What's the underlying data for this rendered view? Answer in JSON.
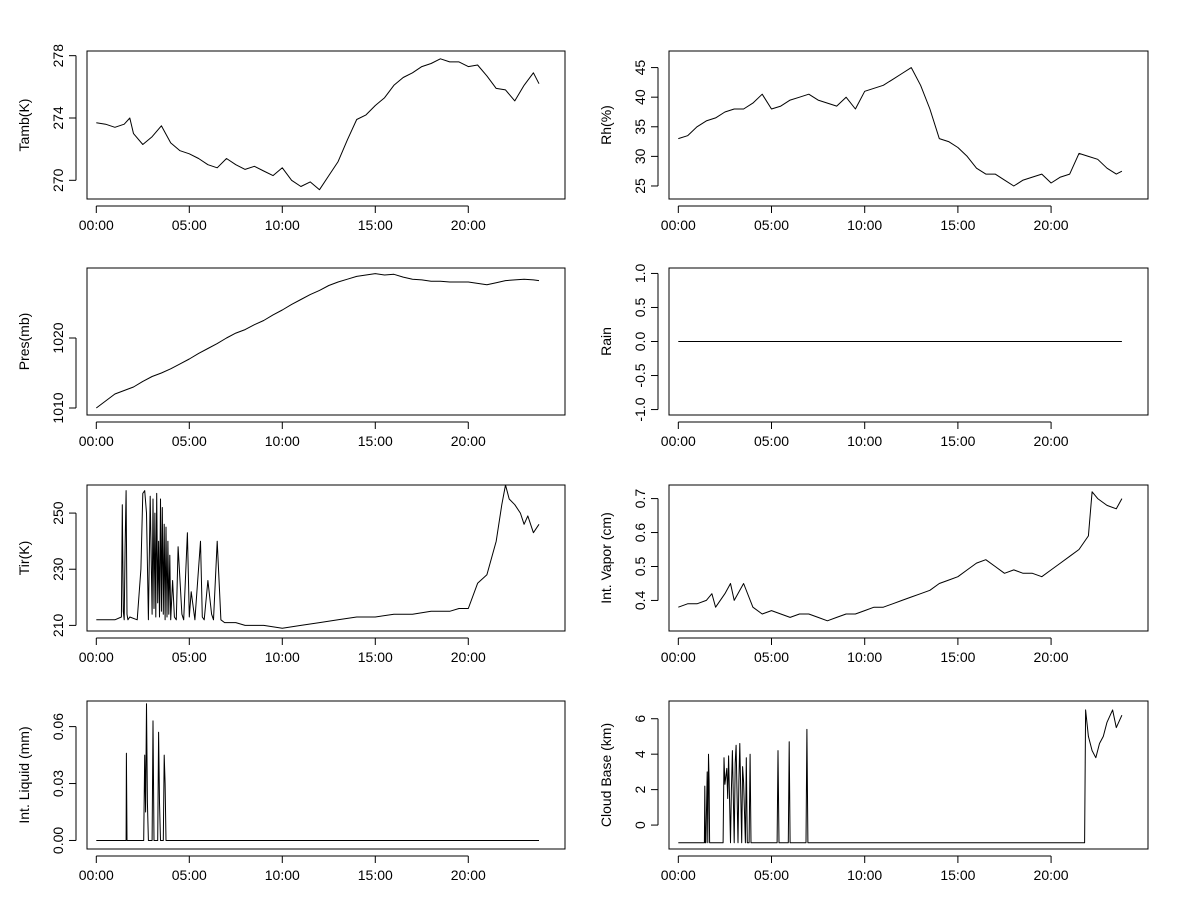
{
  "chart_data": [
    {
      "type": "line",
      "ylabel": "Tamb(K)",
      "xticks": [
        "00:00",
        "05:00",
        "10:00",
        "15:00",
        "20:00"
      ],
      "xlim": [
        -0.5,
        25.2
      ],
      "ylim": [
        268.8,
        278.3
      ],
      "yticks": [
        "270",
        "274",
        "278"
      ],
      "x": [
        0,
        0.5,
        1,
        1.5,
        1.8,
        2,
        2.5,
        3,
        3.5,
        4,
        4.5,
        5,
        5.5,
        6,
        6.5,
        7,
        7.5,
        8,
        8.5,
        9,
        9.5,
        10,
        10.5,
        11,
        11.5,
        12,
        12.5,
        13,
        13.5,
        14,
        14.5,
        15,
        15.5,
        16,
        16.5,
        17,
        17.5,
        18,
        18.5,
        19,
        19.5,
        20,
        20.5,
        21,
        21.5,
        22,
        22.5,
        23,
        23.5,
        23.8
      ],
      "y": [
        273.7,
        273.6,
        273.4,
        273.6,
        274.0,
        273.0,
        272.3,
        272.8,
        273.5,
        272.4,
        271.9,
        271.7,
        271.4,
        271.0,
        270.8,
        271.4,
        271.0,
        270.7,
        270.9,
        270.6,
        270.3,
        270.8,
        270.0,
        269.6,
        269.9,
        269.4,
        270.3,
        271.2,
        272.6,
        273.9,
        274.2,
        274.8,
        275.3,
        276.1,
        276.6,
        276.9,
        277.3,
        277.5,
        277.8,
        277.6,
        277.6,
        277.3,
        277.4,
        276.7,
        275.9,
        275.8,
        275.1,
        276.1,
        276.9,
        276.2
      ]
    },
    {
      "type": "line",
      "ylabel": "Rh(%)",
      "xticks": [
        "00:00",
        "05:00",
        "10:00",
        "15:00",
        "20:00"
      ],
      "xlim": [
        -0.5,
        25.2
      ],
      "ylim": [
        22.8,
        47.8
      ],
      "yticks": [
        "25",
        "30",
        "35",
        "40",
        "45"
      ],
      "x": [
        0,
        0.5,
        1,
        1.5,
        2,
        2.5,
        3,
        3.5,
        4,
        4.5,
        5,
        5.5,
        6,
        6.5,
        7,
        7.5,
        8,
        8.5,
        9,
        9.5,
        10,
        10.5,
        11,
        11.5,
        12,
        12.5,
        13,
        13.5,
        14,
        14.5,
        15,
        15.5,
        16,
        16.5,
        17,
        17.5,
        18,
        18.5,
        19,
        19.5,
        20,
        20.5,
        21,
        21.5,
        22,
        22.5,
        23,
        23.5,
        23.8
      ],
      "y": [
        33,
        33.5,
        35,
        36,
        36.5,
        37.5,
        38,
        38,
        39,
        40.5,
        38,
        38.5,
        39.5,
        40,
        40.5,
        39.5,
        39,
        38.5,
        40,
        38,
        41,
        41.5,
        42,
        43,
        44,
        45,
        42,
        38,
        33,
        32.5,
        31.5,
        30,
        28,
        27,
        27,
        26,
        25,
        26,
        26.5,
        27,
        25.5,
        26.5,
        27,
        30.5,
        30,
        29.5,
        28,
        27,
        27.5
      ]
    },
    {
      "type": "line",
      "ylabel": "Pres(mb)",
      "xticks": [
        "00:00",
        "05:00",
        "10:00",
        "15:00",
        "20:00"
      ],
      "xlim": [
        -0.5,
        25.2
      ],
      "ylim": [
        1009.0,
        1030.0
      ],
      "yticks": [
        "1010",
        "1020"
      ],
      "x": [
        0,
        0.5,
        1,
        1.5,
        2,
        2.5,
        3,
        3.5,
        4,
        4.5,
        5,
        5.5,
        6,
        6.5,
        7,
        7.5,
        8,
        8.5,
        9,
        9.5,
        10,
        10.5,
        11,
        11.5,
        12,
        12.5,
        13,
        13.5,
        14,
        14.5,
        15,
        15.5,
        16,
        16.5,
        17,
        17.5,
        18,
        18.5,
        19,
        19.5,
        20,
        20.5,
        21,
        21.5,
        22,
        22.5,
        23,
        23.5,
        23.8
      ],
      "y": [
        1010,
        1011,
        1012,
        1012.5,
        1013,
        1013.8,
        1014.5,
        1015,
        1015.6,
        1016.3,
        1017,
        1017.8,
        1018.5,
        1019.2,
        1020,
        1020.7,
        1021.2,
        1021.9,
        1022.5,
        1023.3,
        1024,
        1024.8,
        1025.5,
        1026.2,
        1026.8,
        1027.5,
        1028,
        1028.4,
        1028.8,
        1029,
        1029.2,
        1029,
        1029.1,
        1028.7,
        1028.4,
        1028.3,
        1028.1,
        1028.1,
        1028.0,
        1028.0,
        1028.0,
        1027.8,
        1027.6,
        1027.9,
        1028.2,
        1028.3,
        1028.4,
        1028.3,
        1028.2
      ]
    },
    {
      "type": "line",
      "ylabel": "Rain",
      "xticks": [
        "00:00",
        "05:00",
        "10:00",
        "15:00",
        "20:00"
      ],
      "xlim": [
        -0.5,
        25.2
      ],
      "ylim": [
        -1.08,
        1.08
      ],
      "yticks": [
        "-1.0",
        "-0.5",
        "0.0",
        "0.5",
        "1.0"
      ],
      "x": [
        0,
        23.8
      ],
      "y": [
        0,
        0
      ]
    },
    {
      "type": "line",
      "ylabel": "Tir(K)",
      "xticks": [
        "00:00",
        "05:00",
        "10:00",
        "15:00",
        "20:00"
      ],
      "xlim": [
        -0.5,
        25.2
      ],
      "ylim": [
        208.0,
        260.0
      ],
      "yticks": [
        "210",
        "230",
        "250"
      ],
      "x": [
        0,
        1,
        1.35,
        1.4,
        1.45,
        1.5,
        1.55,
        1.6,
        1.65,
        1.7,
        1.8,
        2.2,
        2.4,
        2.5,
        2.6,
        2.7,
        2.8,
        2.9,
        3.0,
        3.05,
        3.1,
        3.15,
        3.2,
        3.25,
        3.3,
        3.35,
        3.4,
        3.45,
        3.5,
        3.55,
        3.6,
        3.65,
        3.7,
        3.75,
        3.8,
        3.85,
        3.9,
        3.95,
        4.0,
        4.1,
        4.2,
        4.3,
        4.4,
        4.6,
        4.7,
        4.9,
        5.0,
        5.1,
        5.3,
        5.6,
        5.7,
        5.8,
        6.0,
        6.2,
        6.3,
        6.5,
        6.7,
        6.9,
        7.0,
        7.1,
        7.5,
        8,
        9,
        10,
        11,
        12,
        13,
        14,
        15,
        16,
        17,
        18,
        18.5,
        19,
        19.5,
        20,
        20.5,
        21,
        21.5,
        21.8,
        22.0,
        22.2,
        22.5,
        22.8,
        23,
        23.2,
        23.5,
        23.8
      ],
      "y": [
        212,
        212,
        213,
        253,
        215,
        212,
        238,
        258,
        214,
        212,
        213,
        212,
        230,
        257,
        258,
        250,
        212,
        256,
        214,
        255,
        216,
        250,
        213,
        257,
        218,
        240,
        213,
        255,
        215,
        252,
        214,
        246,
        212,
        245,
        213,
        240,
        214,
        235,
        212,
        226,
        213,
        212,
        238,
        214,
        212,
        243,
        213,
        222,
        212,
        240,
        213,
        212,
        226,
        214,
        212,
        240,
        212,
        211,
        211,
        211,
        211,
        210,
        210,
        209,
        210,
        211,
        212,
        213,
        213,
        214,
        214,
        215,
        215,
        215,
        216,
        216,
        225,
        228,
        240,
        253,
        260,
        255,
        253,
        250,
        246,
        249,
        243,
        246
      ]
    },
    {
      "type": "line",
      "ylabel": "Int. Vapor (cm)",
      "xticks": [
        "00:00",
        "05:00",
        "10:00",
        "15:00",
        "20:00"
      ],
      "xlim": [
        -0.5,
        25.2
      ],
      "ylim": [
        0.31,
        0.74
      ],
      "yticks": [
        "0.4",
        "0.5",
        "0.6",
        "0.7"
      ],
      "x": [
        0,
        0.5,
        1,
        1.5,
        1.8,
        2,
        2.5,
        2.8,
        3,
        3.5,
        4,
        4.5,
        5,
        5.5,
        6,
        6.5,
        7,
        7.5,
        8,
        8.5,
        9,
        9.5,
        10,
        10.5,
        11,
        11.5,
        12,
        12.5,
        13,
        13.5,
        14,
        14.5,
        15,
        15.5,
        16,
        16.5,
        17,
        17.5,
        18,
        18.5,
        19,
        19.5,
        20,
        20.5,
        21,
        21.5,
        22,
        22.2,
        22.5,
        23,
        23.5,
        23.8
      ],
      "y": [
        0.38,
        0.39,
        0.39,
        0.4,
        0.42,
        0.38,
        0.42,
        0.45,
        0.4,
        0.45,
        0.38,
        0.36,
        0.37,
        0.36,
        0.35,
        0.36,
        0.36,
        0.35,
        0.34,
        0.35,
        0.36,
        0.36,
        0.37,
        0.38,
        0.38,
        0.39,
        0.4,
        0.41,
        0.42,
        0.43,
        0.45,
        0.46,
        0.47,
        0.49,
        0.51,
        0.52,
        0.5,
        0.48,
        0.49,
        0.48,
        0.48,
        0.47,
        0.49,
        0.51,
        0.53,
        0.55,
        0.59,
        0.72,
        0.7,
        0.68,
        0.67,
        0.7
      ]
    },
    {
      "type": "line",
      "ylabel": "Int. Liquid (mm)",
      "xticks": [
        "00:00",
        "05:00",
        "10:00",
        "15:00",
        "20:00"
      ],
      "xlim": [
        -0.5,
        25.2
      ],
      "ylim": [
        -0.0045,
        0.0735
      ],
      "yticks": [
        "0.00",
        "0.03",
        "0.06"
      ],
      "x": [
        0,
        1.6,
        1.62,
        1.65,
        1.68,
        2.55,
        2.6,
        2.65,
        2.7,
        2.75,
        2.8,
        3.0,
        3.05,
        3.1,
        3.3,
        3.35,
        3.4,
        3.45,
        3.6,
        3.65,
        3.7,
        3.75,
        3.8,
        3.9,
        23.8
      ],
      "y": [
        0,
        0,
        0.046,
        0,
        0,
        0,
        0.045,
        0.015,
        0.072,
        0.02,
        0,
        0,
        0.063,
        0,
        0,
        0.057,
        0.02,
        0,
        0,
        0.045,
        0.03,
        0,
        0,
        0,
        0
      ]
    },
    {
      "type": "line",
      "ylabel": "Cloud Base (km)",
      "xticks": [
        "00:00",
        "05:00",
        "10:00",
        "15:00",
        "20:00"
      ],
      "xlim": [
        -0.5,
        25.2
      ],
      "ylim": [
        -1.35,
        7.0
      ],
      "yticks": [
        "0",
        "2",
        "4",
        "6"
      ],
      "x": [
        0,
        1.4,
        1.42,
        1.45,
        1.48,
        1.55,
        1.58,
        1.62,
        1.65,
        1.68,
        2.4,
        2.45,
        2.5,
        2.6,
        2.65,
        2.7,
        2.8,
        2.85,
        2.9,
        3.0,
        3.05,
        3.1,
        3.2,
        3.25,
        3.3,
        3.4,
        3.45,
        3.5,
        3.6,
        3.65,
        3.7,
        3.8,
        3.85,
        3.9,
        4.2,
        4.25,
        4.3,
        5.3,
        5.35,
        5.4,
        5.9,
        5.95,
        6.0,
        6.85,
        6.9,
        6.95,
        21.8,
        21.85,
        22,
        22.2,
        22.4,
        22.6,
        22.8,
        23,
        23.3,
        23.5,
        23.8
      ],
      "y": [
        -1,
        -1,
        2.2,
        -1,
        -1,
        3.0,
        -1,
        4.0,
        2.5,
        -1,
        -1,
        3.8,
        2.3,
        3.2,
        1.5,
        3.9,
        -1,
        2.0,
        4.2,
        -1,
        3.5,
        4.5,
        -1,
        2.5,
        4.6,
        -1,
        3.3,
        2.4,
        -1,
        3.8,
        -1,
        -1,
        4.0,
        -1,
        -1,
        -1,
        -1,
        -1,
        4.2,
        -1,
        -1,
        4.7,
        -1,
        -1,
        5.4,
        -1,
        -1,
        6.5,
        5.0,
        4.2,
        3.8,
        4.6,
        5.0,
        5.8,
        6.5,
        5.5,
        6.2
      ]
    }
  ]
}
